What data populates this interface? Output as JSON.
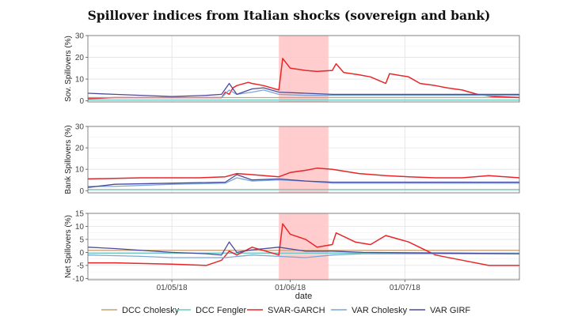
{
  "title": "Spillover indices from Italian shocks (sovereign and bank)",
  "chart_data": {
    "type": "line",
    "xlabel": "date",
    "x_tick_labels": [
      "01/05/18",
      "01/06/18",
      "01/07/18"
    ],
    "x_ticks": [
      "2018-05-01",
      "2018-06-01",
      "2018-07-01"
    ],
    "x_range": [
      "2018-04-09",
      "2018-07-31"
    ],
    "shaded_region": [
      "2018-05-29",
      "2018-06-11"
    ],
    "shaded_color": "#ffc8c8",
    "grid": true,
    "legend_position": "bottom",
    "legend": [
      {
        "name": "DCC Cholesky",
        "color": "#c9a27a"
      },
      {
        "name": "DCC Fengler",
        "color": "#6fc9c0"
      },
      {
        "name": "SVAR-GARCH",
        "color": "#e8262a"
      },
      {
        "name": "VAR Cholesky",
        "color": "#7aa7d6"
      },
      {
        "name": "VAR GIRF",
        "color": "#4a4a9c"
      }
    ],
    "panels": [
      {
        "ylabel": "Sov. Spillovers (%)",
        "ylim": [
          -0.5,
          30
        ],
        "yticks": [
          0,
          10,
          20,
          30
        ],
        "series": [
          {
            "name": "DCC Cholesky",
            "x": [
              "2018-04-09",
              "2018-07-31"
            ],
            "y": [
              1.5,
              1.5
            ]
          },
          {
            "name": "DCC Fengler",
            "x": [
              "2018-04-09",
              "2018-07-31"
            ],
            "y": [
              0.4,
              0.4
            ]
          },
          {
            "name": "SVAR-GARCH",
            "x": [
              "2018-04-09",
              "2018-04-16",
              "2018-04-23",
              "2018-05-01",
              "2018-05-08",
              "2018-05-14",
              "2018-05-15",
              "2018-05-16",
              "2018-05-17",
              "2018-05-18",
              "2018-05-21",
              "2018-05-22",
              "2018-05-25",
              "2018-05-29",
              "2018-05-30",
              "2018-06-01",
              "2018-06-05",
              "2018-06-08",
              "2018-06-12",
              "2018-06-13",
              "2018-06-15",
              "2018-06-19",
              "2018-06-22",
              "2018-06-26",
              "2018-06-27",
              "2018-07-02",
              "2018-07-05",
              "2018-07-09",
              "2018-07-12",
              "2018-07-16",
              "2018-07-20",
              "2018-07-24",
              "2018-07-31"
            ],
            "y": [
              1,
              1.5,
              1.5,
              1.5,
              1.5,
              1.5,
              4,
              3,
              6,
              7,
              8.5,
              8,
              7,
              5,
              19.5,
              15,
              14,
              13.5,
              14,
              17,
              13,
              12,
              11,
              8,
              12.5,
              11,
              8,
              7,
              6,
              5,
              3,
              2,
              1.5
            ]
          },
          {
            "name": "VAR Cholesky",
            "x": [
              "2018-04-09",
              "2018-05-10",
              "2018-05-14",
              "2018-05-16",
              "2018-05-18",
              "2018-05-22",
              "2018-05-25",
              "2018-05-29",
              "2018-06-05",
              "2018-06-12",
              "2018-07-31"
            ],
            "y": [
              1.5,
              1.5,
              1.5,
              5,
              3,
              4,
              5,
              3,
              2.5,
              2.5,
              2.5
            ]
          },
          {
            "name": "VAR GIRF",
            "x": [
              "2018-04-09",
              "2018-04-16",
              "2018-05-01",
              "2018-05-10",
              "2018-05-14",
              "2018-05-16",
              "2018-05-18",
              "2018-05-22",
              "2018-05-25",
              "2018-05-29",
              "2018-06-05",
              "2018-06-12",
              "2018-06-20",
              "2018-07-31"
            ],
            "y": [
              3.5,
              3,
              2,
              2.5,
              3,
              8,
              3,
              5.5,
              6,
              4,
              3.5,
              3,
              3,
              3
            ]
          }
        ]
      },
      {
        "ylabel": "Bank Spillovers (%)",
        "ylim": [
          -1,
          30
        ],
        "yticks": [
          0,
          10,
          20,
          30
        ],
        "series": [
          {
            "name": "DCC Cholesky",
            "x": [
              "2018-04-09",
              "2018-07-31"
            ],
            "y": [
              0.5,
              0.5
            ]
          },
          {
            "name": "DCC Fengler",
            "x": [
              "2018-04-09",
              "2018-07-31"
            ],
            "y": [
              0.5,
              0.5
            ]
          },
          {
            "name": "SVAR-GARCH",
            "x": [
              "2018-04-09",
              "2018-04-23",
              "2018-05-08",
              "2018-05-15",
              "2018-05-18",
              "2018-05-22",
              "2018-05-29",
              "2018-06-01",
              "2018-06-05",
              "2018-06-08",
              "2018-06-12",
              "2018-06-19",
              "2018-06-26",
              "2018-07-02",
              "2018-07-09",
              "2018-07-16",
              "2018-07-23",
              "2018-07-31"
            ],
            "y": [
              5.5,
              6,
              6,
              6.5,
              8,
              7.5,
              6.5,
              8.5,
              9.5,
              10.5,
              10,
              8,
              7,
              6.5,
              6,
              6,
              7,
              6
            ]
          },
          {
            "name": "VAR Cholesky",
            "x": [
              "2018-04-09",
              "2018-04-16",
              "2018-05-01",
              "2018-05-15",
              "2018-05-18",
              "2018-05-22",
              "2018-05-29",
              "2018-06-05",
              "2018-06-12",
              "2018-06-20",
              "2018-07-31"
            ],
            "y": [
              2,
              2,
              3,
              3.5,
              6,
              4.5,
              5,
              4.5,
              3.5,
              3.5,
              3.5
            ]
          },
          {
            "name": "VAR GIRF",
            "x": [
              "2018-04-09",
              "2018-04-16",
              "2018-05-01",
              "2018-05-15",
              "2018-05-18",
              "2018-05-22",
              "2018-05-29",
              "2018-06-05",
              "2018-06-12",
              "2018-06-20",
              "2018-07-31"
            ],
            "y": [
              1.5,
              3,
              3.5,
              4,
              7.5,
              5,
              5.5,
              4.5,
              4,
              4,
              4
            ]
          }
        ]
      },
      {
        "ylabel": "Net Spillovers (%)",
        "ylim": [
          -10.5,
          15
        ],
        "yticks": [
          -10,
          -5,
          0,
          5,
          10,
          15
        ],
        "series": [
          {
            "name": "DCC Cholesky",
            "x": [
              "2018-04-09",
              "2018-07-31"
            ],
            "y": [
              0.8,
              0.8
            ]
          },
          {
            "name": "DCC Fengler",
            "x": [
              "2018-04-09",
              "2018-07-31"
            ],
            "y": [
              -0.3,
              -0.3
            ]
          },
          {
            "name": "SVAR-GARCH",
            "x": [
              "2018-04-09",
              "2018-04-16",
              "2018-05-01",
              "2018-05-10",
              "2018-05-14",
              "2018-05-16",
              "2018-05-18",
              "2018-05-22",
              "2018-05-29",
              "2018-05-30",
              "2018-06-01",
              "2018-06-05",
              "2018-06-08",
              "2018-06-12",
              "2018-06-13",
              "2018-06-18",
              "2018-06-22",
              "2018-06-26",
              "2018-07-02",
              "2018-07-09",
              "2018-07-16",
              "2018-07-23",
              "2018-07-31"
            ],
            "y": [
              -4,
              -4,
              -4.5,
              -5,
              -3,
              0.5,
              -1,
              2,
              -1,
              11,
              7,
              5,
              2,
              3,
              7.5,
              4,
              3,
              6.5,
              4,
              -1,
              -3,
              -5,
              -5
            ]
          },
          {
            "name": "VAR Cholesky",
            "x": [
              "2018-04-09",
              "2018-04-23",
              "2018-05-01",
              "2018-05-15",
              "2018-05-22",
              "2018-05-29",
              "2018-06-05",
              "2018-06-12",
              "2018-06-20",
              "2018-07-31"
            ],
            "y": [
              -1,
              -1.5,
              -2,
              -2,
              -1,
              -1.5,
              -2,
              -1,
              -0.5,
              -0.5
            ]
          },
          {
            "name": "VAR GIRF",
            "x": [
              "2018-04-09",
              "2018-04-16",
              "2018-05-01",
              "2018-05-10",
              "2018-05-14",
              "2018-05-16",
              "2018-05-18",
              "2018-05-22",
              "2018-05-29",
              "2018-06-05",
              "2018-06-12",
              "2018-06-20",
              "2018-07-31"
            ],
            "y": [
              2,
              1.5,
              0,
              -0.5,
              -1,
              4,
              0,
              1,
              2,
              0.5,
              0.5,
              0,
              -0.5
            ]
          }
        ]
      }
    ]
  }
}
